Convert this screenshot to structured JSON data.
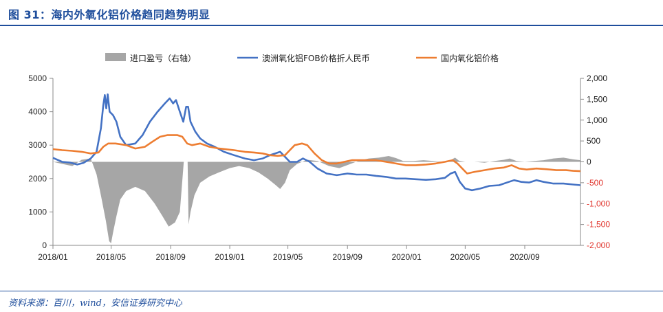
{
  "header": {
    "title": "图 31：海内外氧化铝价格趋同趋势明显"
  },
  "footer": {
    "source": "资料来源：百川，wind，安信证券研究中心"
  },
  "colors": {
    "accent": "#1f4e9c",
    "area": "#a6a6a6",
    "blue": "#4472c4",
    "orange": "#ed7d31",
    "right_axis": "#e0332b"
  },
  "chart_data": {
    "type": "line",
    "title": "",
    "legend_position": "top-center",
    "grid": false,
    "xlim": [
      "2018-01-01",
      "2020-12-25"
    ],
    "x_ticks": [
      "2018/01",
      "2018/05",
      "2018/09",
      "2019/01",
      "2019/05",
      "2019/09",
      "2020/01",
      "2020/05",
      "2020/09"
    ],
    "x_tick_dates": [
      "2018-01-01",
      "2018-05-01",
      "2018-09-01",
      "2019-01-01",
      "2019-05-01",
      "2019-09-01",
      "2020-01-01",
      "2020-05-01",
      "2020-09-01"
    ],
    "y_left": {
      "ylim": [
        0,
        5000
      ],
      "ticks": [
        "0",
        "1000",
        "2000",
        "3000",
        "4000",
        "5000"
      ]
    },
    "y_right": {
      "ylim": [
        -2000,
        2000
      ],
      "ticks": [
        "-2,000",
        "-1,500",
        "-1,000",
        "-500",
        "0",
        "500",
        "1,000",
        "1,500",
        "2,000"
      ]
    },
    "series": [
      {
        "name": "进口盈亏（右轴）",
        "type": "area",
        "axis": "right",
        "color": "#a6a6a6",
        "points": [
          [
            "2018-01-01",
            0
          ],
          [
            "2018-01-20",
            -50
          ],
          [
            "2018-02-10",
            -100
          ],
          [
            "2018-03-01",
            50
          ],
          [
            "2018-03-20",
            80
          ],
          [
            "2018-04-01",
            -300
          ],
          [
            "2018-04-10",
            -800
          ],
          [
            "2018-04-20",
            -1400
          ],
          [
            "2018-04-27",
            -1900
          ],
          [
            "2018-05-01",
            -1950
          ],
          [
            "2018-05-05",
            -1700
          ],
          [
            "2018-05-12",
            -1300
          ],
          [
            "2018-05-20",
            -900
          ],
          [
            "2018-06-01",
            -700
          ],
          [
            "2018-06-20",
            -600
          ],
          [
            "2018-07-10",
            -700
          ],
          [
            "2018-07-30",
            -1000
          ],
          [
            "2018-08-15",
            -1300
          ],
          [
            "2018-08-28",
            -1550
          ],
          [
            "2018-09-10",
            -1450
          ],
          [
            "2018-09-20",
            -1200
          ],
          [
            "2018-09-26",
            -300
          ],
          [
            "2018-09-28",
            0
          ],
          [
            "2018-10-06",
            0
          ],
          [
            "2018-10-08",
            -1500
          ],
          [
            "2018-10-12",
            -1200
          ],
          [
            "2018-10-20",
            -800
          ],
          [
            "2018-11-01",
            -500
          ],
          [
            "2018-11-20",
            -350
          ],
          [
            "2018-12-10",
            -250
          ],
          [
            "2019-01-01",
            -150
          ],
          [
            "2019-01-20",
            -100
          ],
          [
            "2019-02-10",
            -150
          ],
          [
            "2019-03-01",
            -250
          ],
          [
            "2019-03-20",
            -400
          ],
          [
            "2019-04-05",
            -550
          ],
          [
            "2019-04-15",
            -650
          ],
          [
            "2019-04-25",
            -500
          ],
          [
            "2019-05-05",
            -200
          ],
          [
            "2019-05-20",
            -50
          ],
          [
            "2019-06-10",
            50
          ],
          [
            "2019-07-01",
            20
          ],
          [
            "2019-07-25",
            -100
          ],
          [
            "2019-08-15",
            -150
          ],
          [
            "2019-09-05",
            -60
          ],
          [
            "2019-09-25",
            30
          ],
          [
            "2019-10-15",
            80
          ],
          [
            "2019-11-05",
            100
          ],
          [
            "2019-11-25",
            140
          ],
          [
            "2019-12-10",
            90
          ],
          [
            "2019-12-25",
            20
          ],
          [
            "2020-01-15",
            20
          ],
          [
            "2020-02-05",
            40
          ],
          [
            "2020-02-25",
            20
          ],
          [
            "2020-03-15",
            0
          ],
          [
            "2020-04-01",
            40
          ],
          [
            "2020-04-10",
            100
          ],
          [
            "2020-04-18",
            30
          ],
          [
            "2020-05-01",
            0
          ],
          [
            "2020-05-20",
            0
          ],
          [
            "2020-06-10",
            -20
          ],
          [
            "2020-07-01",
            20
          ],
          [
            "2020-07-20",
            50
          ],
          [
            "2020-08-01",
            80
          ],
          [
            "2020-08-15",
            20
          ],
          [
            "2020-09-01",
            0
          ],
          [
            "2020-09-20",
            20
          ],
          [
            "2020-10-10",
            40
          ],
          [
            "2020-10-30",
            80
          ],
          [
            "2020-11-20",
            100
          ],
          [
            "2020-12-10",
            60
          ],
          [
            "2020-12-25",
            40
          ]
        ]
      },
      {
        "name": "澳洲氧化铝FOB价格折人民币",
        "type": "line",
        "axis": "left",
        "color": "#4472c4",
        "points": [
          [
            "2018-01-01",
            2620
          ],
          [
            "2018-01-20",
            2500
          ],
          [
            "2018-02-05",
            2480
          ],
          [
            "2018-02-20",
            2420
          ],
          [
            "2018-03-05",
            2470
          ],
          [
            "2018-03-20",
            2600
          ],
          [
            "2018-04-01",
            2800
          ],
          [
            "2018-04-10",
            3500
          ],
          [
            "2018-04-15",
            4200
          ],
          [
            "2018-04-18",
            4500
          ],
          [
            "2018-04-21",
            4100
          ],
          [
            "2018-04-24",
            4520
          ],
          [
            "2018-04-28",
            4000
          ],
          [
            "2018-05-05",
            3900
          ],
          [
            "2018-05-12",
            3700
          ],
          [
            "2018-05-20",
            3250
          ],
          [
            "2018-06-01",
            3000
          ],
          [
            "2018-06-20",
            3050
          ],
          [
            "2018-07-05",
            3300
          ],
          [
            "2018-07-20",
            3700
          ],
          [
            "2018-08-05",
            4000
          ],
          [
            "2018-08-20",
            4250
          ],
          [
            "2018-08-30",
            4400
          ],
          [
            "2018-09-06",
            4250
          ],
          [
            "2018-09-12",
            4350
          ],
          [
            "2018-09-20",
            4000
          ],
          [
            "2018-09-27",
            3700
          ],
          [
            "2018-10-03",
            4150
          ],
          [
            "2018-10-07",
            4150
          ],
          [
            "2018-10-12",
            3700
          ],
          [
            "2018-10-22",
            3400
          ],
          [
            "2018-11-01",
            3200
          ],
          [
            "2018-11-15",
            3050
          ],
          [
            "2018-12-01",
            2950
          ],
          [
            "2018-12-20",
            2800
          ],
          [
            "2019-01-10",
            2700
          ],
          [
            "2019-02-01",
            2600
          ],
          [
            "2019-02-20",
            2550
          ],
          [
            "2019-03-10",
            2600
          ],
          [
            "2019-03-25",
            2700
          ],
          [
            "2019-04-05",
            2750
          ],
          [
            "2019-04-15",
            2800
          ],
          [
            "2019-04-25",
            2650
          ],
          [
            "2019-05-05",
            2500
          ],
          [
            "2019-05-20",
            2500
          ],
          [
            "2019-06-01",
            2600
          ],
          [
            "2019-06-15",
            2500
          ],
          [
            "2019-07-01",
            2300
          ],
          [
            "2019-07-20",
            2150
          ],
          [
            "2019-08-10",
            2100
          ],
          [
            "2019-09-01",
            2150
          ],
          [
            "2019-09-20",
            2120
          ],
          [
            "2019-10-10",
            2120
          ],
          [
            "2019-10-30",
            2080
          ],
          [
            "2019-11-20",
            2050
          ],
          [
            "2019-12-10",
            2000
          ],
          [
            "2019-12-30",
            2000
          ],
          [
            "2020-01-20",
            1980
          ],
          [
            "2020-02-10",
            1960
          ],
          [
            "2020-03-01",
            1980
          ],
          [
            "2020-03-20",
            2020
          ],
          [
            "2020-04-01",
            2150
          ],
          [
            "2020-04-10",
            2200
          ],
          [
            "2020-04-20",
            1900
          ],
          [
            "2020-05-01",
            1700
          ],
          [
            "2020-05-15",
            1650
          ],
          [
            "2020-06-01",
            1700
          ],
          [
            "2020-06-20",
            1780
          ],
          [
            "2020-07-10",
            1800
          ],
          [
            "2020-07-30",
            1900
          ],
          [
            "2020-08-10",
            1950
          ],
          [
            "2020-08-25",
            1900
          ],
          [
            "2020-09-10",
            1880
          ],
          [
            "2020-09-25",
            1950
          ],
          [
            "2020-10-10",
            1900
          ],
          [
            "2020-10-30",
            1850
          ],
          [
            "2020-11-20",
            1850
          ],
          [
            "2020-12-10",
            1820
          ],
          [
            "2020-12-25",
            1800
          ]
        ]
      },
      {
        "name": "国内氧化铝价格",
        "type": "line",
        "axis": "left",
        "color": "#ed7d31",
        "points": [
          [
            "2018-01-01",
            2880
          ],
          [
            "2018-01-20",
            2850
          ],
          [
            "2018-02-10",
            2830
          ],
          [
            "2018-03-01",
            2800
          ],
          [
            "2018-03-20",
            2750
          ],
          [
            "2018-04-05",
            2780
          ],
          [
            "2018-04-15",
            2950
          ],
          [
            "2018-04-25",
            3050
          ],
          [
            "2018-05-10",
            3050
          ],
          [
            "2018-06-01",
            3000
          ],
          [
            "2018-06-20",
            2900
          ],
          [
            "2018-07-10",
            2950
          ],
          [
            "2018-07-25",
            3100
          ],
          [
            "2018-08-10",
            3250
          ],
          [
            "2018-08-25",
            3300
          ],
          [
            "2018-09-15",
            3300
          ],
          [
            "2018-09-25",
            3250
          ],
          [
            "2018-10-05",
            3050
          ],
          [
            "2018-10-15",
            3000
          ],
          [
            "2018-11-01",
            3050
          ],
          [
            "2018-11-20",
            2950
          ],
          [
            "2018-12-10",
            2900
          ],
          [
            "2019-01-10",
            2850
          ],
          [
            "2019-02-01",
            2800
          ],
          [
            "2019-02-20",
            2780
          ],
          [
            "2019-03-10",
            2750
          ],
          [
            "2019-03-25",
            2700
          ],
          [
            "2019-04-10",
            2680
          ],
          [
            "2019-04-25",
            2700
          ],
          [
            "2019-05-05",
            2850
          ],
          [
            "2019-05-15",
            3000
          ],
          [
            "2019-05-30",
            3050
          ],
          [
            "2019-06-10",
            3000
          ],
          [
            "2019-06-25",
            2750
          ],
          [
            "2019-07-10",
            2550
          ],
          [
            "2019-07-25",
            2450
          ],
          [
            "2019-08-10",
            2450
          ],
          [
            "2019-08-25",
            2500
          ],
          [
            "2019-09-10",
            2550
          ],
          [
            "2019-09-25",
            2550
          ],
          [
            "2019-10-10",
            2550
          ],
          [
            "2019-10-30",
            2550
          ],
          [
            "2019-11-20",
            2500
          ],
          [
            "2019-12-10",
            2450
          ],
          [
            "2019-12-30",
            2400
          ],
          [
            "2020-01-20",
            2400
          ],
          [
            "2020-02-10",
            2420
          ],
          [
            "2020-03-01",
            2450
          ],
          [
            "2020-03-20",
            2500
          ],
          [
            "2020-04-05",
            2550
          ],
          [
            "2020-04-15",
            2450
          ],
          [
            "2020-04-25",
            2300
          ],
          [
            "2020-05-05",
            2150
          ],
          [
            "2020-05-20",
            2200
          ],
          [
            "2020-06-10",
            2250
          ],
          [
            "2020-06-30",
            2300
          ],
          [
            "2020-07-20",
            2330
          ],
          [
            "2020-08-05",
            2400
          ],
          [
            "2020-08-20",
            2300
          ],
          [
            "2020-09-05",
            2270
          ],
          [
            "2020-09-25",
            2300
          ],
          [
            "2020-10-15",
            2280
          ],
          [
            "2020-11-05",
            2250
          ],
          [
            "2020-11-25",
            2250
          ],
          [
            "2020-12-10",
            2230
          ],
          [
            "2020-12-25",
            2220
          ]
        ]
      }
    ]
  }
}
